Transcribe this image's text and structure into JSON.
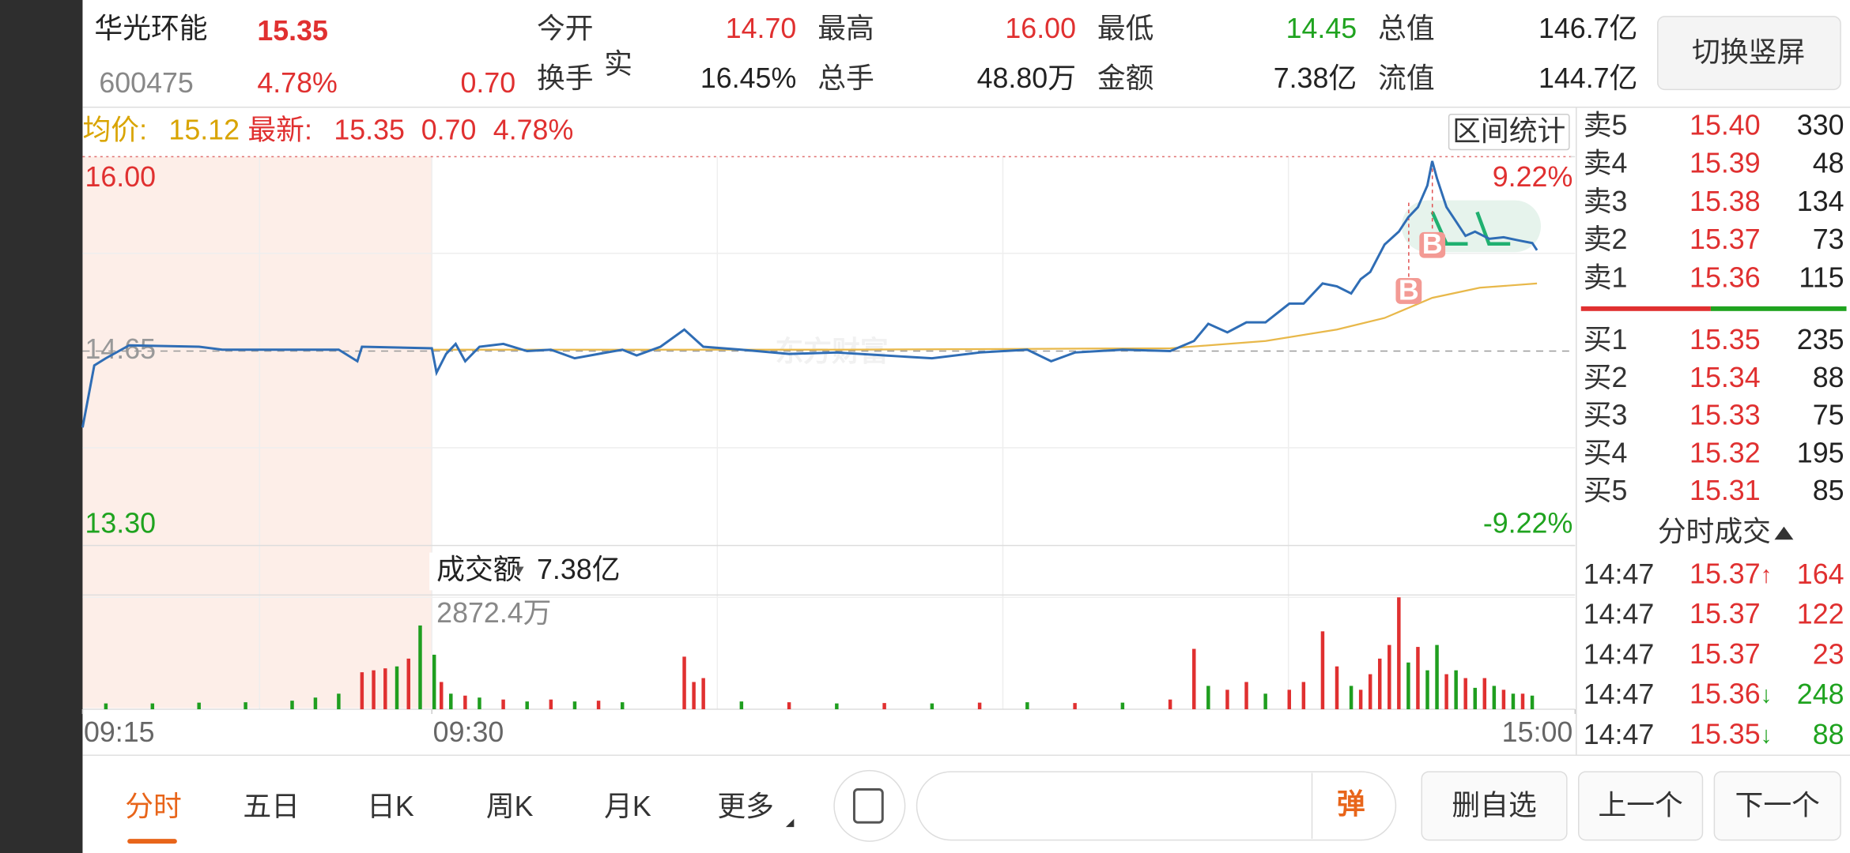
{
  "header": {
    "name": "华光环能",
    "price": "15.35",
    "code": "600475",
    "change_pct": "4.78%",
    "change": "0.70",
    "stats": [
      {
        "label": "今开",
        "value": "14.70"
      },
      {
        "label": "最高",
        "value": "16.00"
      },
      {
        "label": "最低",
        "value": "14.45"
      },
      {
        "label": "总值",
        "value": "146.7亿"
      },
      {
        "label": "换手",
        "sup": "实",
        "value": "16.45%"
      },
      {
        "label": "总手",
        "value": "48.80万"
      },
      {
        "label": "金额",
        "value": "7.38亿"
      },
      {
        "label": "流值",
        "value": "144.7亿"
      }
    ],
    "button": "切换竖屏"
  },
  "chart_data": {
    "type": "line",
    "avg_label": "均价:",
    "avg": "15.12",
    "latest_label": "最新:",
    "latest": "15.35",
    "latest_change": "0.70",
    "latest_pct": "4.78%",
    "range_button": "区间统计",
    "watermark": "东方财富",
    "markers": [
      "B",
      "B"
    ],
    "ylim": [
      13.3,
      16.0
    ],
    "yticks": [
      {
        "value": 13.3,
        "label": "13.30"
      },
      {
        "value": 14.65,
        "label": "14.65"
      },
      {
        "value": 16,
        "label": "16.00"
      }
    ],
    "y2lim": [
      -9.22,
      9.22
    ],
    "y2ticks": [
      {
        "value": -9.22,
        "label": "-9.22%"
      },
      {
        "value": 9.22,
        "label": "9.22%"
      }
    ],
    "xlim": [
      0,
      255
    ],
    "xticks": [
      {
        "value": 0,
        "label": "09:15"
      },
      {
        "value": 15,
        "label": "09:30"
      },
      {
        "value": 255,
        "label": "15:00"
      }
    ],
    "series": [
      {
        "color": "#2f6db5",
        "x": [
          0,
          0.5,
          1,
          2,
          5,
          6,
          9,
          11,
          11.8,
          12,
          15,
          16,
          18,
          20,
          22,
          25,
          30,
          35,
          40,
          45,
          50,
          55,
          58,
          63,
          68,
          72,
          80,
          90,
          100,
          110,
          120,
          130,
          140,
          145,
          150,
          160,
          170,
          175,
          178,
          182,
          186,
          190,
          195,
          198,
          202,
          205,
          208,
          210,
          212,
          215,
          218,
          220,
          222,
          224,
          225,
          226,
          228,
          230,
          232,
          234,
          237,
          240,
          243,
          246,
          247
        ],
        "values": [
          14.12,
          14.55,
          14.6,
          14.69,
          14.68,
          14.66,
          14.66,
          14.66,
          14.58,
          14.68,
          14.67,
          14.5,
          14.63,
          14.7,
          14.58,
          14.68,
          14.7,
          14.65,
          14.66,
          14.6,
          14.63,
          14.66,
          14.62,
          14.68,
          14.8,
          14.68,
          14.66,
          14.63,
          14.64,
          14.62,
          14.6,
          14.64,
          14.66,
          14.58,
          14.64,
          14.66,
          14.65,
          14.72,
          14.84,
          14.78,
          14.85,
          14.85,
          14.98,
          14.98,
          15.12,
          15.1,
          15.05,
          15.15,
          15.2,
          15.39,
          15.48,
          15.58,
          15.65,
          15.8,
          15.97,
          15.85,
          15.65,
          15.55,
          15.45,
          15.48,
          15.43,
          15.44,
          15.42,
          15.4,
          15.35
        ]
      },
      {
        "color": "#e8b84a",
        "x": [
          15,
          100,
          170,
          190,
          205,
          215,
          225,
          235,
          247
        ],
        "values": [
          14.66,
          14.66,
          14.67,
          14.72,
          14.8,
          14.88,
          15.02,
          15.09,
          15.12
        ]
      }
    ],
    "volume": {
      "label": "成交额",
      "total": "7.38亿",
      "ylim": [
        0,
        2872.4
      ],
      "yticks": [
        {
          "value": 2872.4,
          "label": "2872.4万"
        }
      ],
      "up": {
        "color": "#e03030",
        "x": [
          12,
          12.5,
          13,
          14,
          17,
          22,
          30,
          40,
          50,
          68,
          70,
          72,
          90,
          110,
          130,
          150,
          170,
          175,
          182,
          186,
          195,
          198,
          202,
          205,
          210,
          212,
          214,
          216,
          218,
          222,
          228,
          232,
          236,
          240,
          244
        ],
        "values": [
          950,
          1000,
          1050,
          1300,
          700,
          350,
          250,
          250,
          220,
          1350,
          700,
          800,
          180,
          160,
          170,
          160,
          250,
          1550,
          500,
          700,
          500,
          700,
          2000,
          1100,
          500,
          900,
          1300,
          1650,
          2872.4,
          1600,
          900,
          800,
          800,
          500,
          400
        ]
      },
      "down": {
        "color": "#1f9e1f",
        "x": [
          1,
          3,
          5,
          7,
          9,
          10,
          11,
          13.5,
          14.5,
          15.5,
          19,
          25,
          35,
          45,
          55,
          80,
          100,
          120,
          140,
          160,
          178,
          190,
          208,
          220,
          224,
          226,
          230,
          234,
          238,
          242,
          246
        ],
        "values": [
          150,
          150,
          170,
          180,
          220,
          300,
          400,
          1100,
          2150,
          1400,
          400,
          300,
          200,
          200,
          180,
          200,
          150,
          150,
          180,
          170,
          600,
          400,
          600,
          1200,
          1000,
          1650,
          1000,
          550,
          600,
          400,
          350
        ]
      }
    }
  },
  "order_book": {
    "asks": [
      {
        "label": "卖5",
        "price": "15.40",
        "volume": "330"
      },
      {
        "label": "卖4",
        "price": "15.39",
        "volume": "48"
      },
      {
        "label": "卖3",
        "price": "15.38",
        "volume": "134"
      },
      {
        "label": "卖2",
        "price": "15.37",
        "volume": "73"
      },
      {
        "label": "卖1",
        "price": "15.36",
        "volume": "115"
      }
    ],
    "bids": [
      {
        "label": "买1",
        "price": "15.35",
        "volume": "235"
      },
      {
        "label": "买2",
        "price": "15.34",
        "volume": "88"
      },
      {
        "label": "买3",
        "price": "15.33",
        "volume": "75"
      },
      {
        "label": "买4",
        "price": "15.32",
        "volume": "195"
      },
      {
        "label": "买5",
        "price": "15.31",
        "volume": "85"
      }
    ]
  },
  "trades": {
    "title": "分时成交",
    "rows": [
      {
        "time": "14:47",
        "price": "15.37",
        "arrow": "↑",
        "volume": "164"
      },
      {
        "time": "14:47",
        "price": "15.37",
        "volume": "122"
      },
      {
        "time": "14:47",
        "price": "15.37",
        "volume": "23"
      },
      {
        "time": "14:47",
        "price": "15.36",
        "arrow": "↓",
        "volume": "248"
      },
      {
        "time": "14:47",
        "price": "15.35",
        "arrow": "↓",
        "volume": "88"
      }
    ]
  },
  "nav": {
    "tabs": [
      "分时",
      "五日",
      "日K",
      "周K",
      "月K",
      "更多"
    ],
    "danmu": "弹",
    "buttons": [
      "删自选",
      "上一个",
      "下一个"
    ]
  }
}
